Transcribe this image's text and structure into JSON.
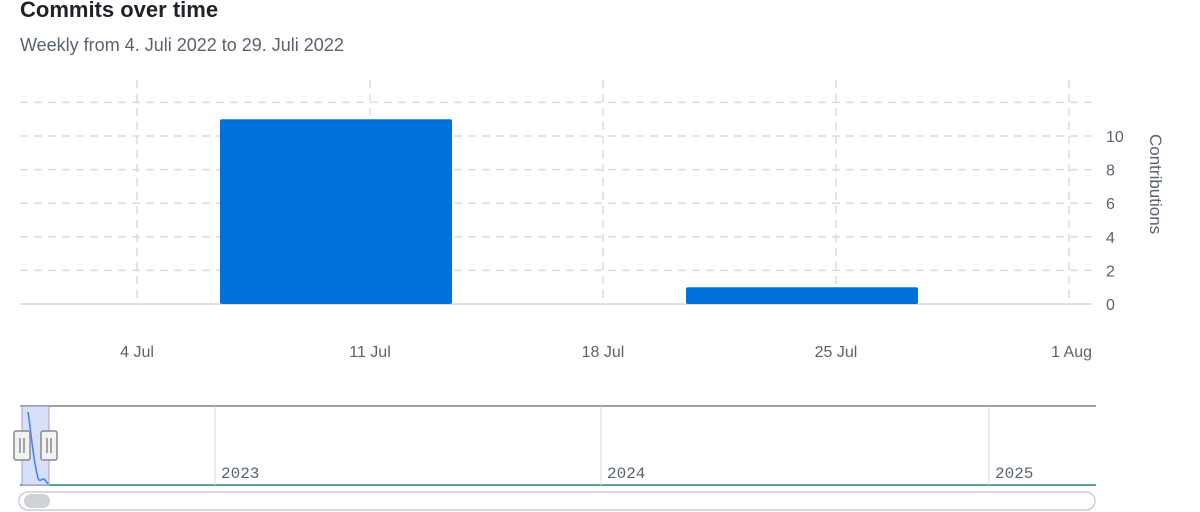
{
  "header": {
    "title": "Commits over time",
    "subtitle": "Weekly from 4. Juli 2022 to 29. Juli 2022"
  },
  "colors": {
    "bar": "#0070dd",
    "grid": "#d9dcdf",
    "axis": "#d0d7de",
    "nav_fill": "#c7d2f5",
    "nav_line": "#3b82f6",
    "nav_baseline": "#1f8a65"
  },
  "chart_data": {
    "type": "bar",
    "title": "Commits over time",
    "subtitle": "Weekly from 4. Juli 2022 to 29. Juli 2022",
    "xlabel": "",
    "ylabel": "Contributions",
    "x_ticks": [
      "4 Jul",
      "11 Jul",
      "18 Jul",
      "25 Jul",
      "1 Aug"
    ],
    "y_ticks": [
      0,
      2,
      4,
      6,
      8,
      10
    ],
    "ylim": [
      0,
      12
    ],
    "grid": true,
    "bars": [
      {
        "week": "11 Jul",
        "value": 11
      },
      {
        "week": "25 Jul",
        "value": 1
      }
    ]
  },
  "navigator": {
    "years": [
      "2023",
      "2024",
      "2025"
    ]
  }
}
